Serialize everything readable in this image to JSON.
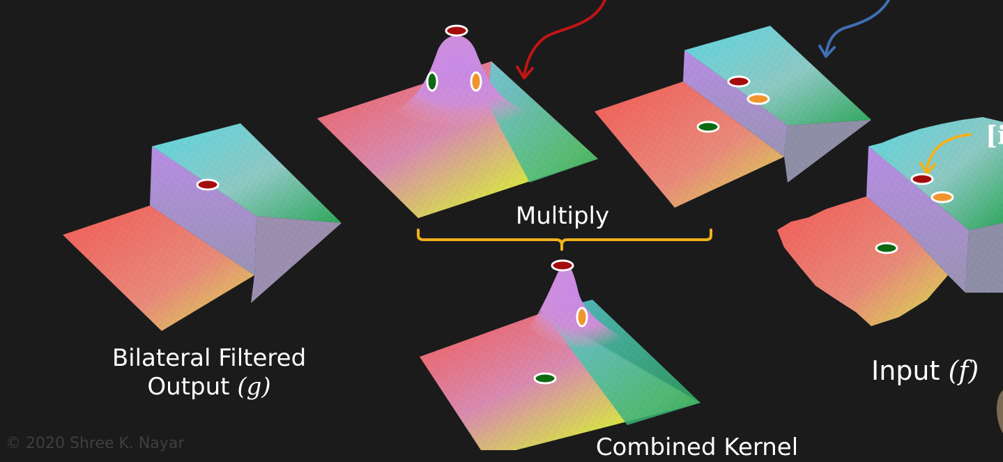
{
  "labels": {
    "output_line1": "Bilateral Filtered",
    "output_line2": "Output",
    "output_var": "(g)",
    "multiply": "Multiply",
    "input": "Input",
    "input_var": "(f)",
    "combined": "Combined Kernel",
    "copyright": "© 2020 Shree K. Nayar",
    "bracket_text": "[i"
  },
  "colors": {
    "background": "#1b1b1b",
    "marker_red": "#a40d0d",
    "marker_green": "#0e6a12",
    "marker_orange": "#f0952e",
    "arrow_red": "#c21414",
    "arrow_blue": "#3f6fb5",
    "arrow_orange": "#f2b11c",
    "brace_orange": "#f2b11c",
    "surface_red": "#f25c57",
    "surface_yellow": "#d8e04c",
    "surface_green": "#2fa85c",
    "surface_cyan": "#5ed6e0",
    "surface_violet": "#c27de0"
  },
  "surfaces": [
    {
      "name": "output-step-surface",
      "kind": "step-surface"
    },
    {
      "name": "spatial-gaussian-kernel",
      "kind": "gaussian-surface"
    },
    {
      "name": "range-kernel-step",
      "kind": "step-surface"
    },
    {
      "name": "input-noisy-step",
      "kind": "noisy-step-surface"
    },
    {
      "name": "combined-kernel-surface",
      "kind": "half-gaussian-surface"
    }
  ]
}
